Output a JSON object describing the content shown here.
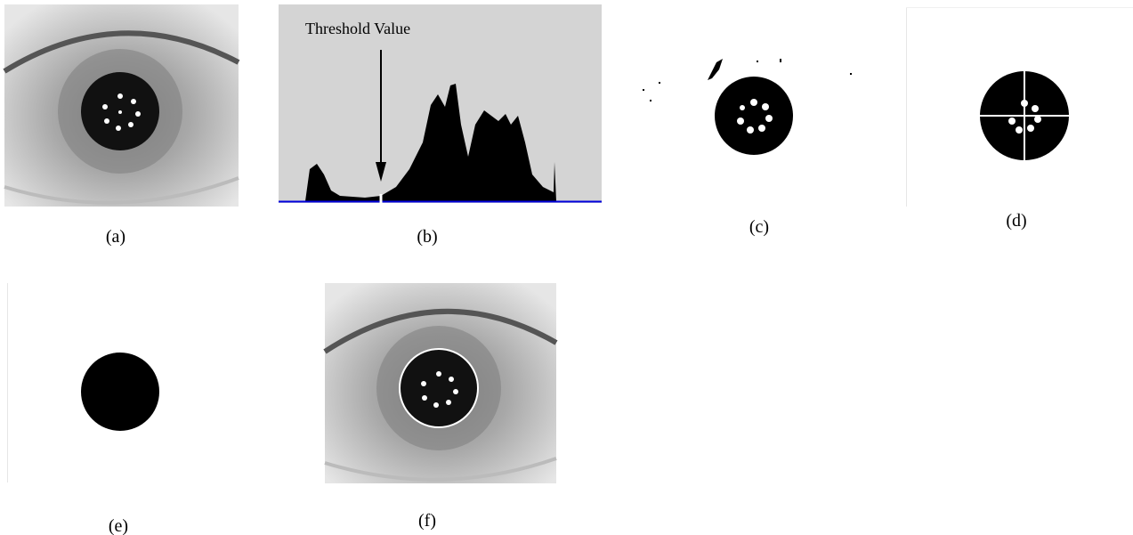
{
  "panels": [
    {
      "label": "(a)"
    },
    {
      "label": "(b)"
    },
    {
      "label": "(c)"
    },
    {
      "label": "(d)"
    },
    {
      "label": "(e)"
    },
    {
      "label": "(f)"
    }
  ],
  "histogram": {
    "annotation": "Threshold Value"
  }
}
